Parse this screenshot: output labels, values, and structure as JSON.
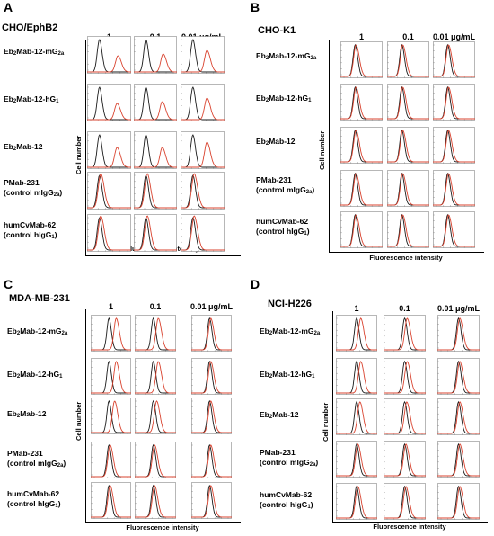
{
  "figure": {
    "concentrations": [
      "1",
      "0.1",
      "0.01 μg/mL"
    ],
    "axes": {
      "y_label": "Cell number",
      "x_label": "Fluorescence intensity"
    },
    "panels": [
      {
        "letter": "A",
        "title": "CHO/EphB2",
        "rows": [
          {
            "line1": "Eb",
            "sub1": "2",
            "line1b": "Mab-12-mG",
            "sub1b": "2a",
            "line2": "",
            "sub2": "",
            "line2b": ""
          },
          {
            "line1": "Eb",
            "sub1": "2",
            "line1b": "Mab-12-hG",
            "sub1b": "1",
            "line2": "",
            "sub2": "",
            "line2b": ""
          },
          {
            "line1": "Eb",
            "sub1": "2",
            "line1b": "Mab-12",
            "sub1b": "",
            "line2": "",
            "sub2": "",
            "line2b": ""
          },
          {
            "line1": "PMab-231",
            "sub1": "",
            "line1b": "",
            "sub1b": "",
            "line2": "(control mIgG",
            "sub2": "2a",
            "line2b": ")"
          },
          {
            "line1": "humCvMab-62",
            "sub1": "",
            "line1b": "",
            "sub1b": "",
            "line2": "(control hIgG",
            "sub2": "1",
            "line2b": ")"
          }
        ]
      },
      {
        "letter": "B",
        "title": "CHO-K1",
        "rows": [
          {
            "line1": "Eb",
            "sub1": "2",
            "line1b": "Mab-12-mG",
            "sub1b": "2a",
            "line2": "",
            "sub2": "",
            "line2b": ""
          },
          {
            "line1": "Eb",
            "sub1": "2",
            "line1b": "Mab-12-hG",
            "sub1b": "1",
            "line2": "",
            "sub2": "",
            "line2b": ""
          },
          {
            "line1": "Eb",
            "sub1": "2",
            "line1b": "Mab-12",
            "sub1b": "",
            "line2": "",
            "sub2": "",
            "line2b": ""
          },
          {
            "line1": "PMab-231",
            "sub1": "",
            "line1b": "",
            "sub1b": "",
            "line2": "(control mIgG",
            "sub2": "2a",
            "line2b": ")"
          },
          {
            "line1": "humCvMab-62",
            "sub1": "",
            "line1b": "",
            "sub1b": "",
            "line2": "(control hIgG",
            "sub2": "1",
            "line2b": ")"
          }
        ]
      },
      {
        "letter": "C",
        "title": "MDA-MB-231",
        "rows": [
          {
            "line1": "Eb",
            "sub1": "2",
            "line1b": "Mab-12-mG",
            "sub1b": "2a",
            "line2": "",
            "sub2": "",
            "line2b": ""
          },
          {
            "line1": "Eb",
            "sub1": "2",
            "line1b": "Mab-12-hG",
            "sub1b": "1",
            "line2": "",
            "sub2": "",
            "line2b": ""
          },
          {
            "line1": "Eb",
            "sub1": "2",
            "line1b": "Mab-12",
            "sub1b": "",
            "line2": "",
            "sub2": "",
            "line2b": ""
          },
          {
            "line1": "PMab-231",
            "sub1": "",
            "line1b": "",
            "sub1b": "",
            "line2": "(control mIgG",
            "sub2": "2a",
            "line2b": ")"
          },
          {
            "line1": "humCvMab-62",
            "sub1": "",
            "line1b": "",
            "sub1b": "",
            "line2": "(control hIgG",
            "sub2": "1",
            "line2b": ")"
          }
        ]
      },
      {
        "letter": "D",
        "title": "NCI-H226",
        "rows": [
          {
            "line1": "Eb",
            "sub1": "2",
            "line1b": "Mab-12-mG",
            "sub1b": "2a",
            "line2": "",
            "sub2": "",
            "line2b": ""
          },
          {
            "line1": "Eb",
            "sub1": "2",
            "line1b": "Mab-12-hG",
            "sub1b": "1",
            "line2": "",
            "sub2": "",
            "line2b": ""
          },
          {
            "line1": "Eb",
            "sub1": "2",
            "line1b": "Mab-12",
            "sub1b": "",
            "line2": "",
            "sub2": "",
            "line2b": ""
          },
          {
            "line1": "PMab-231",
            "sub1": "",
            "line1b": "",
            "sub1b": "",
            "line2": "(control mIgG",
            "sub2": "2a",
            "line2b": ")"
          },
          {
            "line1": "humCvMab-62",
            "sub1": "",
            "line1b": "",
            "sub1b": "",
            "line2": "(control hIgG",
            "sub2": "1",
            "line2b": ")"
          }
        ]
      }
    ],
    "colors": {
      "control": "#1a1a1a",
      "antibody": "#d9432f"
    }
  }
}
